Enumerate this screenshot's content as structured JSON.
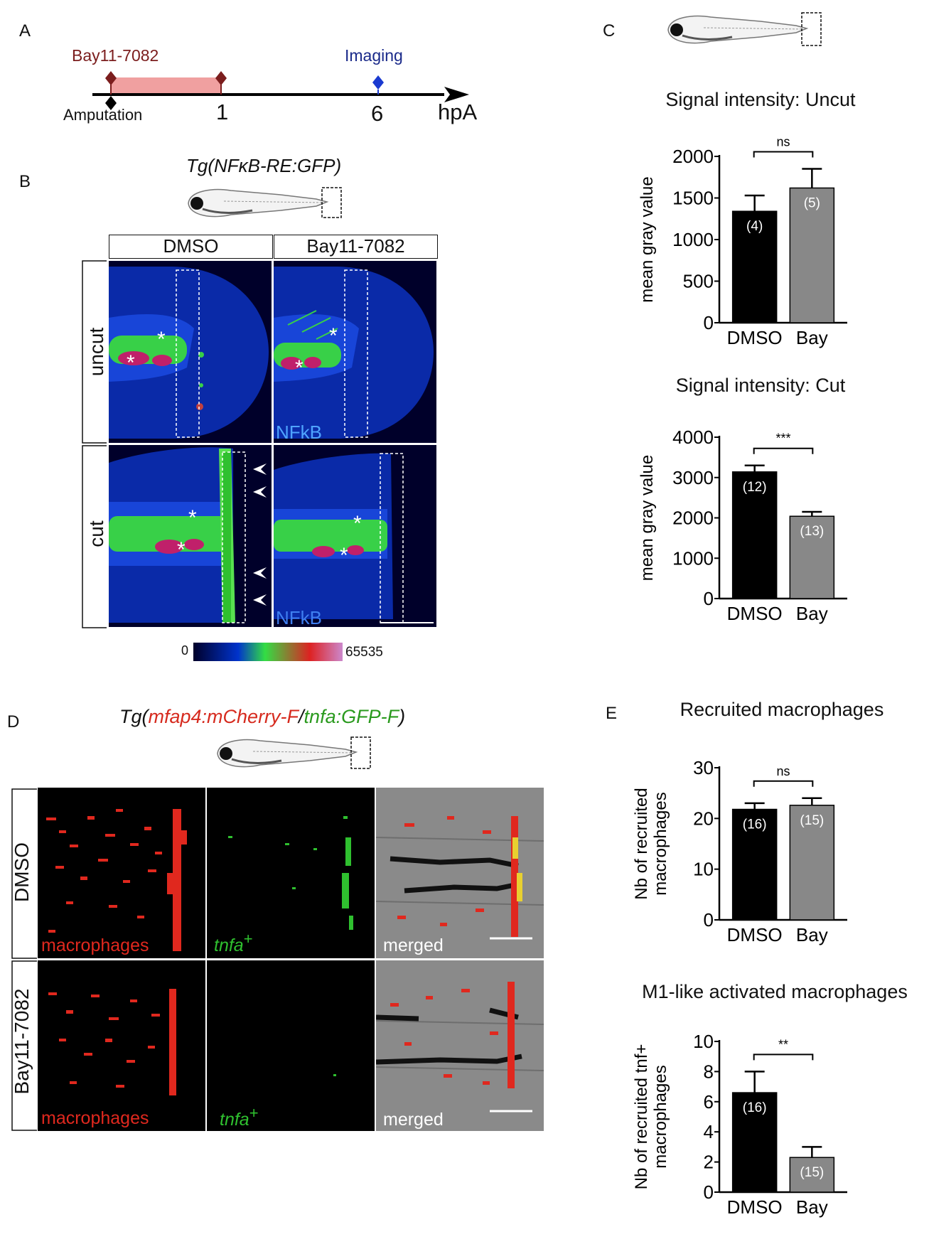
{
  "panel_letters": {
    "a": "A",
    "b": "B",
    "c": "C",
    "d": "D",
    "e": "E"
  },
  "timeline": {
    "drug": "Bay11-7082",
    "imaging": "Imaging",
    "amputation": "Amputation",
    "tick1": "1",
    "tick6": "6",
    "unit": "hpA"
  },
  "panel_b": {
    "title": "Tg(NFκB-RE:GFP)",
    "col_dmso": "DMSO",
    "col_bay": "Bay11-7082",
    "row_uncut": "uncut",
    "row_cut": "cut",
    "channel_label": "NFkB",
    "scale_min": "0",
    "scale_max": "65535",
    "colors": {
      "low": "#00002a",
      "mid1": "#0033cc",
      "mid2": "#33dd44",
      "mid3": "#dd2222",
      "high": "#cc88cc"
    }
  },
  "panel_d": {
    "title_prefix": "Tg(",
    "title_red": "mfap4:mCherry-F",
    "title_slash": "/",
    "title_green": "tnfa:GFP-F",
    "title_suffix": ")",
    "row_dmso": "DMSO",
    "row_bay": "Bay11-7082",
    "label_macro": "macrophages",
    "label_tnfa": "tnfa",
    "label_plus": "+",
    "label_merged": "merged",
    "colors": {
      "red": "#e0281e",
      "green": "#2fc02f"
    }
  },
  "chart_data": [
    {
      "type": "bar",
      "title": "Signal intensity: Uncut",
      "ylabel": "mean gray value",
      "categories": [
        "DMSO",
        "Bay"
      ],
      "values": [
        1340,
        1620
      ],
      "errors": [
        190,
        230
      ],
      "n_labels": [
        "(4)",
        "(5)"
      ],
      "bar_colors": [
        "#000000",
        "#888888"
      ],
      "ylim": [
        0,
        2000
      ],
      "yticks": [
        "0",
        "500",
        "1000",
        "1500",
        "2000"
      ],
      "significance": "ns"
    },
    {
      "type": "bar",
      "title": "Signal intensity: Cut",
      "ylabel": "mean gray value",
      "categories": [
        "DMSO",
        "Bay"
      ],
      "values": [
        3140,
        2040
      ],
      "errors": [
        160,
        110
      ],
      "n_labels": [
        "(12)",
        "(13)"
      ],
      "bar_colors": [
        "#000000",
        "#888888"
      ],
      "ylim": [
        0,
        4000
      ],
      "yticks": [
        "0",
        "1000",
        "2000",
        "3000",
        "4000"
      ],
      "significance": "***"
    },
    {
      "type": "bar",
      "title": "Recruited macrophages",
      "ylabel_lines": [
        "Nb of recruited",
        "macrophages"
      ],
      "categories": [
        "DMSO",
        "Bay"
      ],
      "values": [
        21.8,
        22.6
      ],
      "errors": [
        1.2,
        1.4
      ],
      "n_labels": [
        "(16)",
        "(15)"
      ],
      "bar_colors": [
        "#000000",
        "#888888"
      ],
      "ylim": [
        0,
        30
      ],
      "yticks": [
        "0",
        "10",
        "20",
        "30"
      ],
      "significance": "ns"
    },
    {
      "type": "bar",
      "title": "M1-like activated macrophages",
      "ylabel_lines": [
        "Nb of recruited tnf+",
        "macrophages"
      ],
      "categories": [
        "DMSO",
        "Bay"
      ],
      "values": [
        6.6,
        2.3
      ],
      "errors": [
        1.4,
        0.7
      ],
      "n_labels": [
        "(16)",
        "(15)"
      ],
      "bar_colors": [
        "#000000",
        "#888888"
      ],
      "ylim": [
        0,
        10
      ],
      "yticks": [
        "0",
        "2",
        "4",
        "6",
        "8",
        "10"
      ],
      "significance": "**"
    }
  ]
}
